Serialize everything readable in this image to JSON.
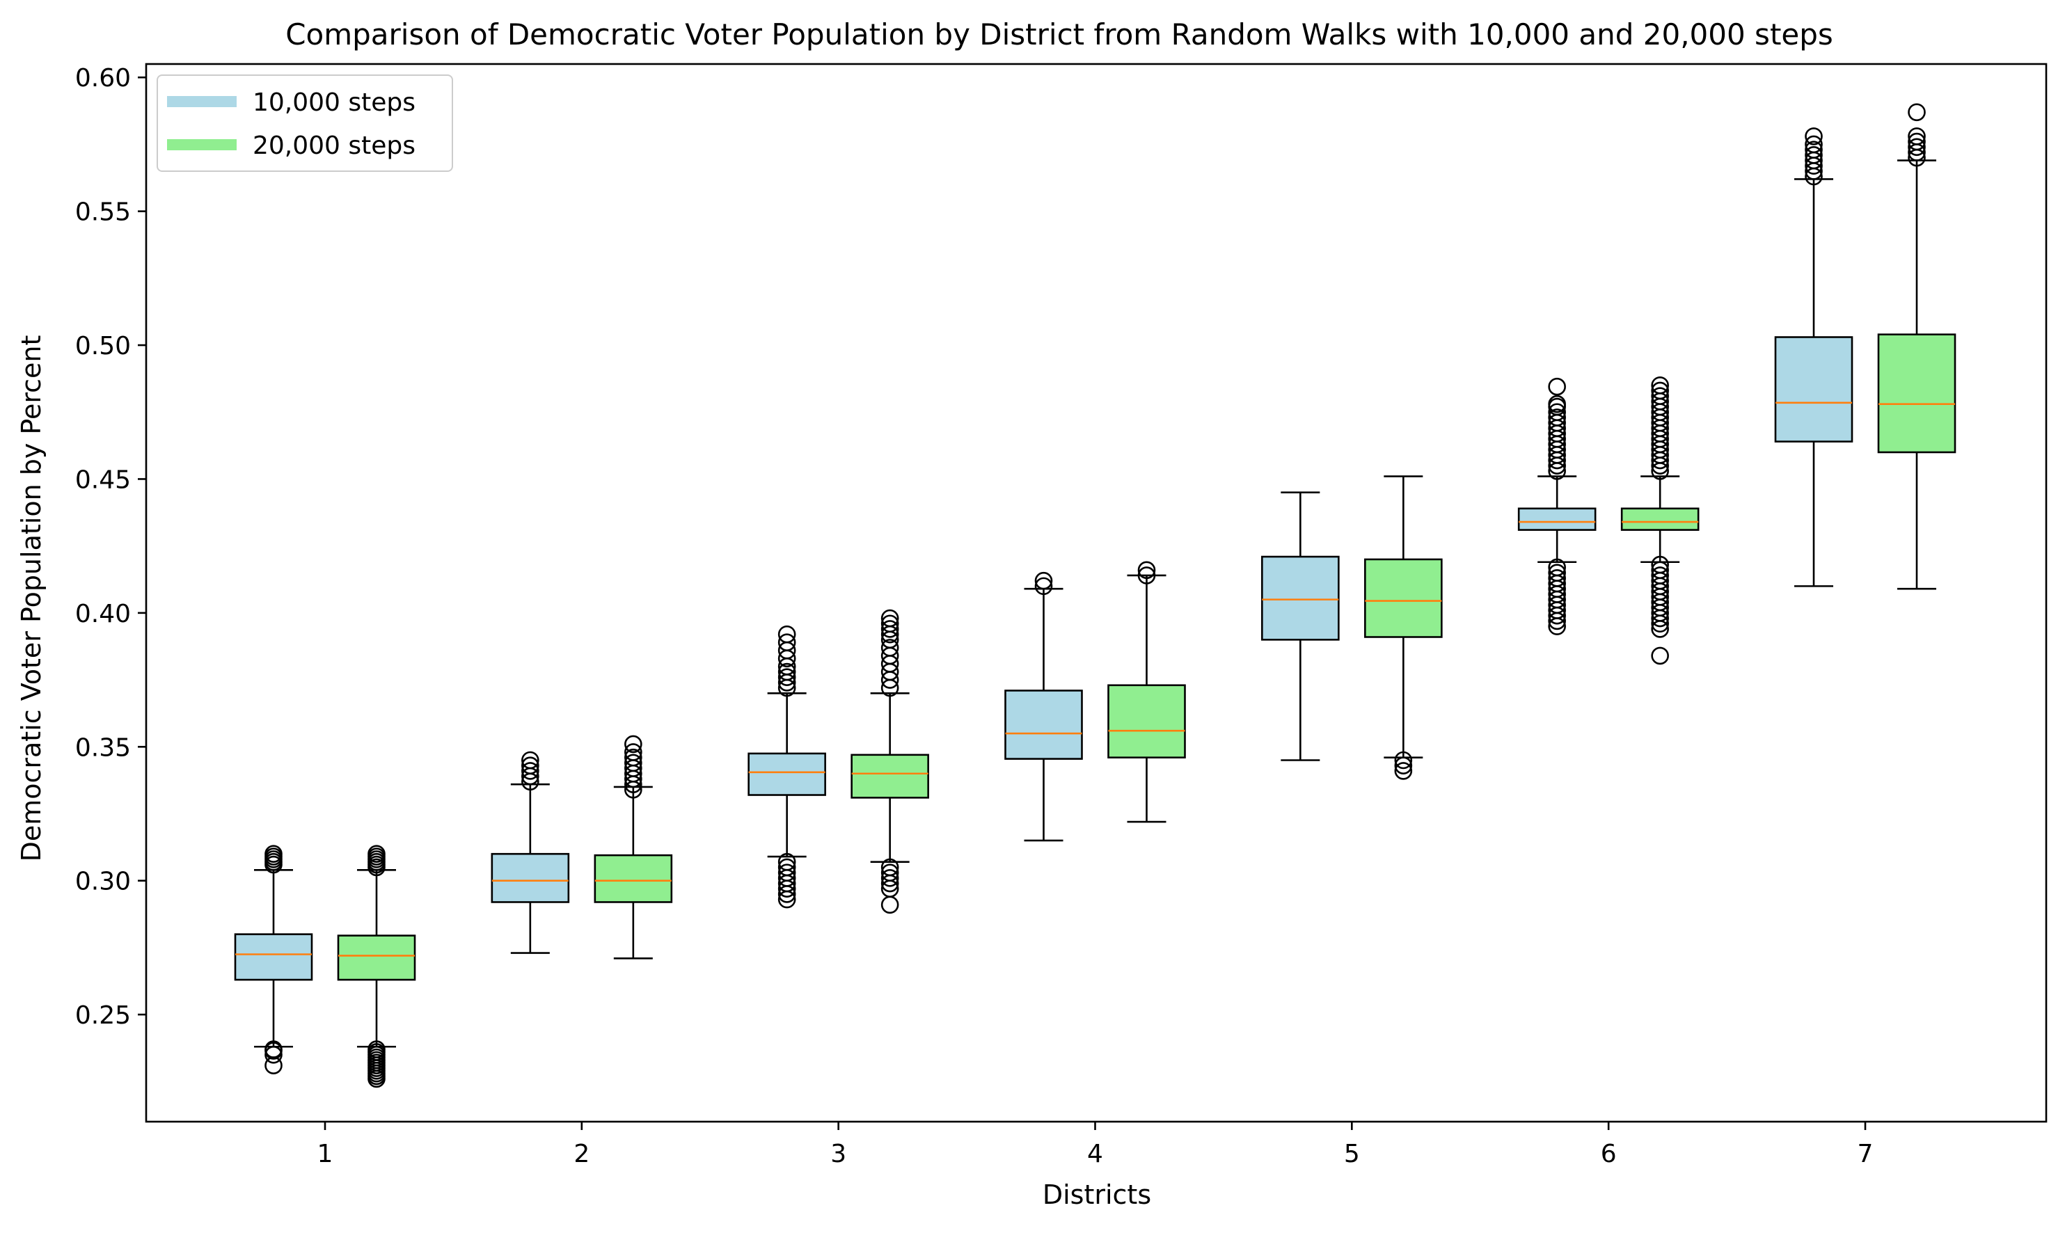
{
  "chart_data": {
    "type": "box",
    "title": "Comparison of Democratic Voter Population by District from Random Walks with 10,000 and 20,000 steps",
    "xlabel": "Districts",
    "ylabel": "Democratic Voter Population by Percent",
    "categories": [
      "1",
      "2",
      "3",
      "4",
      "5",
      "6",
      "7"
    ],
    "ylim": [
      0.21,
      0.605
    ],
    "yticks": [
      0.25,
      0.3,
      0.35,
      0.4,
      0.45,
      0.5,
      0.55,
      0.6
    ],
    "ytick_labels": [
      "0.25",
      "0.30",
      "0.35",
      "0.40",
      "0.45",
      "0.50",
      "0.55",
      "0.60"
    ],
    "legend_position": "top-left",
    "grid": false,
    "colors": {
      "median": "#ff7f0e",
      "edge": "#000000"
    },
    "series": [
      {
        "name": "10,000 steps",
        "color": "#add8e6",
        "boxes": [
          {
            "whislo": 0.238,
            "q1": 0.263,
            "med": 0.2725,
            "q3": 0.28,
            "whishi": 0.304,
            "fliers": [
              0.231,
              0.235,
              0.2365,
              0.237,
              0.306,
              0.307,
              0.308,
              0.309,
              0.31
            ]
          },
          {
            "whislo": 0.273,
            "q1": 0.292,
            "med": 0.3,
            "q3": 0.31,
            "whishi": 0.336,
            "fliers": [
              0.337,
              0.339,
              0.341,
              0.343,
              0.345
            ]
          },
          {
            "whislo": 0.309,
            "q1": 0.332,
            "med": 0.3405,
            "q3": 0.3475,
            "whishi": 0.37,
            "fliers": [
              0.293,
              0.295,
              0.297,
              0.299,
              0.301,
              0.303,
              0.305,
              0.307,
              0.372,
              0.374,
              0.376,
              0.378,
              0.38,
              0.383,
              0.386,
              0.389,
              0.392
            ]
          },
          {
            "whislo": 0.315,
            "q1": 0.3455,
            "med": 0.355,
            "q3": 0.371,
            "whishi": 0.409,
            "fliers": [
              0.41,
              0.412
            ]
          },
          {
            "whislo": 0.345,
            "q1": 0.39,
            "med": 0.405,
            "q3": 0.421,
            "whishi": 0.445,
            "fliers": []
          },
          {
            "whislo": 0.419,
            "q1": 0.431,
            "med": 0.434,
            "q3": 0.439,
            "whishi": 0.451,
            "fliers": [
              0.395,
              0.397,
              0.399,
              0.401,
              0.403,
              0.405,
              0.407,
              0.409,
              0.411,
              0.413,
              0.415,
              0.417,
              0.453,
              0.455,
              0.457,
              0.459,
              0.461,
              0.463,
              0.465,
              0.467,
              0.469,
              0.471,
              0.473,
              0.475,
              0.477,
              0.478,
              0.4845
            ]
          },
          {
            "whislo": 0.41,
            "q1": 0.464,
            "med": 0.4785,
            "q3": 0.503,
            "whishi": 0.562,
            "fliers": [
              0.563,
              0.565,
              0.567,
              0.569,
              0.571,
              0.573,
              0.575,
              0.578
            ]
          }
        ]
      },
      {
        "name": "20,000 steps",
        "color": "#90ee90",
        "boxes": [
          {
            "whislo": 0.238,
            "q1": 0.263,
            "med": 0.272,
            "q3": 0.2795,
            "whishi": 0.304,
            "fliers": [
              0.226,
              0.227,
              0.228,
              0.229,
              0.23,
              0.231,
              0.232,
              0.233,
              0.234,
              0.235,
              0.236,
              0.237,
              0.305,
              0.306,
              0.307,
              0.308,
              0.309,
              0.31
            ]
          },
          {
            "whislo": 0.271,
            "q1": 0.292,
            "med": 0.3,
            "q3": 0.3095,
            "whishi": 0.335,
            "fliers": [
              0.334,
              0.336,
              0.338,
              0.34,
              0.342,
              0.344,
              0.346,
              0.348,
              0.351
            ]
          },
          {
            "whislo": 0.307,
            "q1": 0.331,
            "med": 0.34,
            "q3": 0.347,
            "whishi": 0.37,
            "fliers": [
              0.291,
              0.297,
              0.299,
              0.301,
              0.303,
              0.305,
              0.372,
              0.375,
              0.378,
              0.381,
              0.384,
              0.387,
              0.39,
              0.392,
              0.394,
              0.396,
              0.398
            ]
          },
          {
            "whislo": 0.322,
            "q1": 0.346,
            "med": 0.356,
            "q3": 0.373,
            "whishi": 0.414,
            "fliers": [
              0.414,
              0.416
            ]
          },
          {
            "whislo": 0.346,
            "q1": 0.391,
            "med": 0.4045,
            "q3": 0.42,
            "whishi": 0.451,
            "fliers": [
              0.341,
              0.343,
              0.345
            ]
          },
          {
            "whislo": 0.419,
            "q1": 0.431,
            "med": 0.434,
            "q3": 0.439,
            "whishi": 0.451,
            "fliers": [
              0.384,
              0.394,
              0.396,
              0.398,
              0.4,
              0.402,
              0.404,
              0.406,
              0.408,
              0.41,
              0.412,
              0.414,
              0.416,
              0.418,
              0.453,
              0.455,
              0.457,
              0.459,
              0.461,
              0.463,
              0.465,
              0.467,
              0.469,
              0.471,
              0.473,
              0.475,
              0.477,
              0.479,
              0.481,
              0.483,
              0.485
            ]
          },
          {
            "whislo": 0.409,
            "q1": 0.46,
            "med": 0.478,
            "q3": 0.504,
            "whishi": 0.569,
            "fliers": [
              0.57,
              0.572,
              0.574,
              0.576,
              0.578,
              0.587
            ]
          }
        ]
      }
    ]
  }
}
